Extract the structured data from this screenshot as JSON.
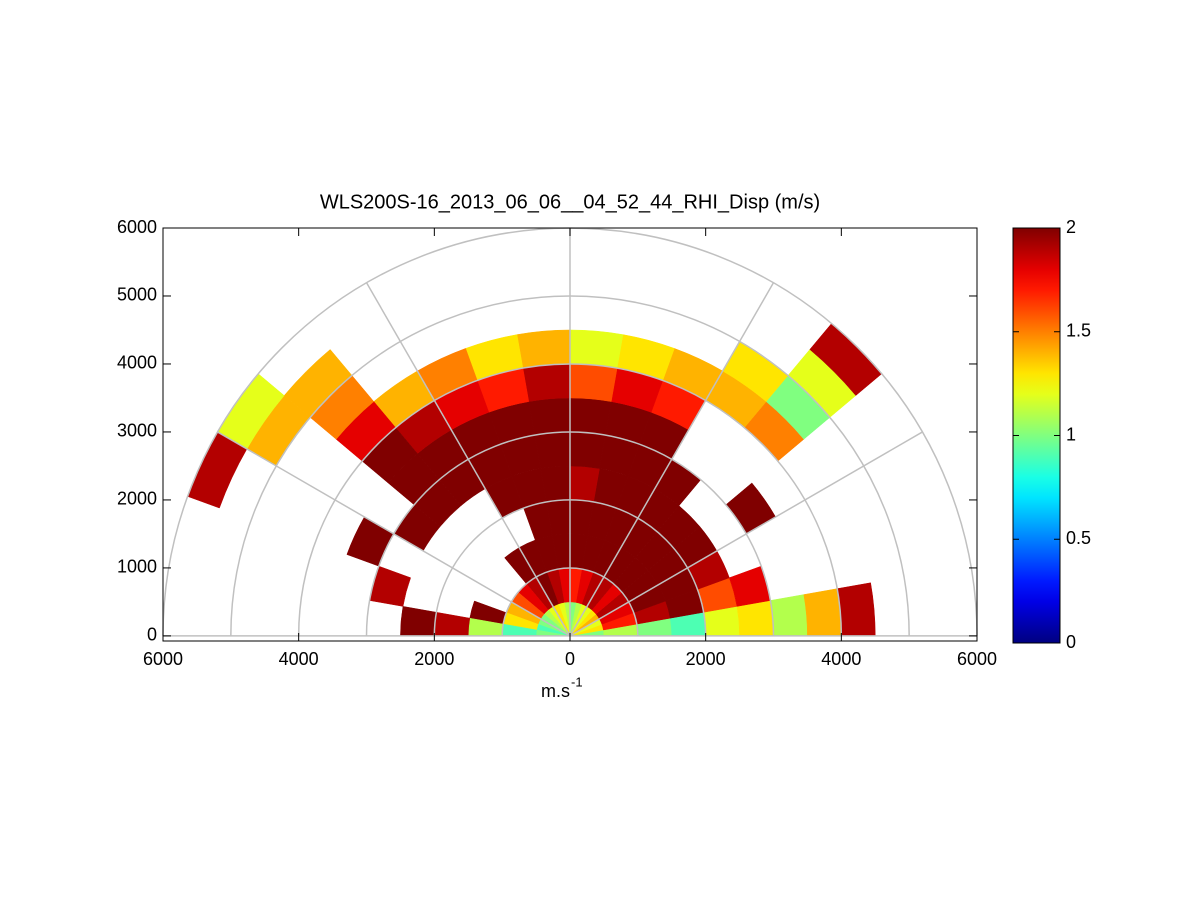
{
  "chart_data": {
    "type": "polar-heatmap",
    "title": "WLS200S-16_2013_06_06__04_52_44_RHI_Disp (m/s)",
    "xlabel": {
      "base": "m.s",
      "sup": "-1"
    },
    "xlim": [
      -6000,
      6000
    ],
    "ylim": [
      -75,
      6000
    ],
    "xticks": [
      {
        "value": -6000,
        "label": "6000"
      },
      {
        "value": -4000,
        "label": "4000"
      },
      {
        "value": -2000,
        "label": "2000"
      },
      0,
      2000,
      4000,
      6000
    ],
    "yticks": [
      0,
      1000,
      2000,
      3000,
      4000,
      5000,
      6000
    ],
    "rgrid": [
      1000,
      2000,
      3000,
      4000,
      5000,
      6000
    ],
    "thetagrid": [
      0,
      30,
      60,
      90,
      120,
      150,
      180
    ],
    "grid_color": "#c0c0c0",
    "colormap": "jet",
    "clim": [
      0,
      2
    ],
    "cticks": [
      0,
      0.5,
      1,
      1.5,
      2
    ],
    "theta_bins": [
      0,
      10,
      20,
      30,
      40,
      50,
      60,
      70,
      80,
      90,
      100,
      110,
      120,
      130,
      140,
      150,
      160,
      170,
      180
    ],
    "r_bins": [
      0,
      500,
      1000,
      1500,
      2000,
      2500,
      3000,
      3500,
      4000,
      4500,
      5000,
      5500,
      6000
    ],
    "values": [
      [
        1.0,
        1.1,
        1.0,
        0.9,
        1.2,
        1.3,
        1.1,
        1.4,
        1.9,
        null,
        null,
        null
      ],
      [
        1.3,
        1.7,
        1.9,
        2,
        1.6,
        1.8,
        null,
        null,
        null,
        null,
        null,
        null
      ],
      [
        1.2,
        1.8,
        2,
        2,
        1.9,
        null,
        null,
        null,
        null,
        null,
        null,
        null
      ],
      [
        1.4,
        1.9,
        2,
        2,
        2,
        null,
        2,
        null,
        null,
        null,
        null,
        null
      ],
      [
        1.3,
        1.8,
        2,
        2,
        2,
        null,
        null,
        null,
        1.5,
        1.0,
        1.2,
        1.9
      ],
      [
        1.2,
        1.9,
        2,
        2,
        2,
        2,
        null,
        null,
        1.4,
        1.3,
        null,
        null
      ],
      [
        1.2,
        1.9,
        2,
        2,
        2,
        2,
        2,
        1.7,
        1.4,
        null,
        null,
        null
      ],
      [
        1.1,
        1.8,
        2,
        2,
        2,
        2,
        2,
        1.8,
        1.3,
        null,
        null,
        null
      ],
      [
        1.0,
        1.7,
        2,
        2,
        1.9,
        2,
        2,
        1.6,
        1.2,
        null,
        null,
        null
      ],
      [
        1.1,
        1.8,
        2,
        2,
        2,
        2,
        2,
        1.9,
        1.4,
        null,
        null,
        null
      ],
      [
        1.2,
        1.9,
        2,
        2,
        2,
        2,
        2,
        1.7,
        1.3,
        null,
        null,
        null
      ],
      [
        1.3,
        2,
        2,
        null,
        2,
        2,
        2,
        1.8,
        1.5,
        null,
        null,
        null
      ],
      [
        1.2,
        1.9,
        2,
        null,
        null,
        2,
        2,
        1.9,
        1.4,
        null,
        null,
        null
      ],
      [
        1.1,
        1.8,
        null,
        null,
        null,
        2,
        2,
        2,
        1.8,
        1.5,
        1.4,
        null
      ],
      [
        1.0,
        1.6,
        null,
        null,
        null,
        2,
        null,
        null,
        null,
        null,
        1.4,
        1.2
      ],
      [
        1.0,
        1.4,
        null,
        null,
        null,
        null,
        2,
        null,
        null,
        null,
        null,
        1.9
      ],
      [
        0.9,
        1.3,
        2,
        null,
        null,
        1.9,
        null,
        null,
        null,
        null,
        null,
        null
      ],
      [
        1.0,
        0.9,
        1.1,
        1.9,
        2,
        null,
        null,
        null,
        null,
        null,
        null,
        null
      ]
    ]
  }
}
